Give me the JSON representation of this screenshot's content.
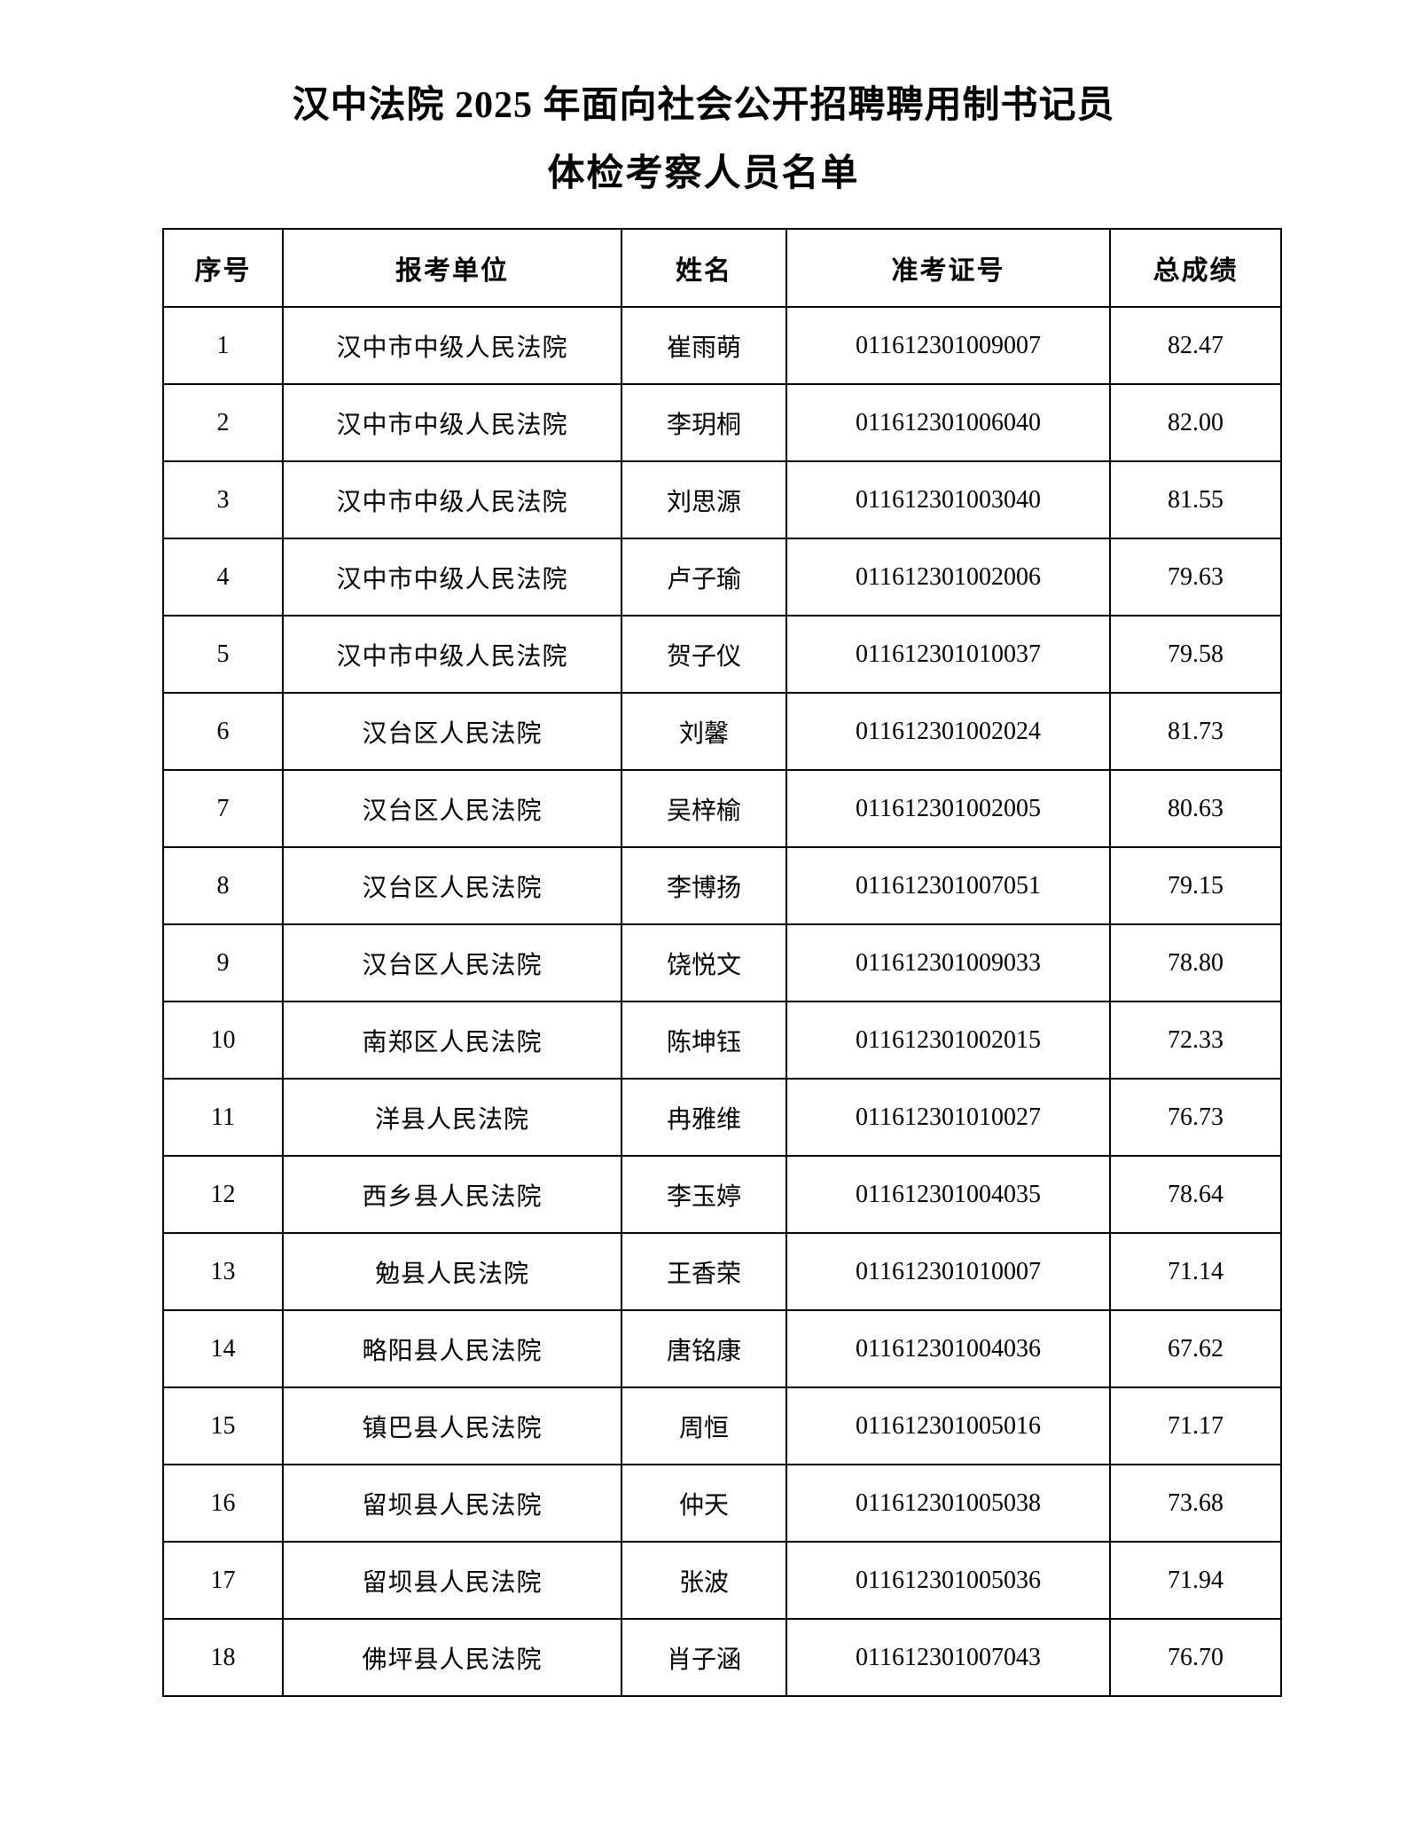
{
  "page": {
    "title_line1": "汉中法院 2025 年面向社会公开招聘聘用制书记员",
    "title_line2": "体检考察人员名单"
  },
  "table": {
    "headers": [
      "序号",
      "报考单位",
      "姓名",
      "准考证号",
      "总成绩"
    ],
    "rows": [
      {
        "no": "1",
        "unit": "汉中市中级人民法院",
        "name": "崔雨萌",
        "ticket": "011612301009007",
        "score": "82.47"
      },
      {
        "no": "2",
        "unit": "汉中市中级人民法院",
        "name": "李玥桐",
        "ticket": "011612301006040",
        "score": "82.00"
      },
      {
        "no": "3",
        "unit": "汉中市中级人民法院",
        "name": "刘思源",
        "ticket": "011612301003040",
        "score": "81.55"
      },
      {
        "no": "4",
        "unit": "汉中市中级人民法院",
        "name": "卢子瑜",
        "ticket": "011612301002006",
        "score": "79.63"
      },
      {
        "no": "5",
        "unit": "汉中市中级人民法院",
        "name": "贺子仪",
        "ticket": "011612301010037",
        "score": "79.58"
      },
      {
        "no": "6",
        "unit": "汉台区人民法院",
        "name": "刘馨",
        "ticket": "011612301002024",
        "score": "81.73"
      },
      {
        "no": "7",
        "unit": "汉台区人民法院",
        "name": "吴梓榆",
        "ticket": "011612301002005",
        "score": "80.63"
      },
      {
        "no": "8",
        "unit": "汉台区人民法院",
        "name": "李博扬",
        "ticket": "011612301007051",
        "score": "79.15"
      },
      {
        "no": "9",
        "unit": "汉台区人民法院",
        "name": "饶悦文",
        "ticket": "011612301009033",
        "score": "78.80"
      },
      {
        "no": "10",
        "unit": "南郑区人民法院",
        "name": "陈坤钰",
        "ticket": "011612301002015",
        "score": "72.33"
      },
      {
        "no": "11",
        "unit": "洋县人民法院",
        "name": "冉雅维",
        "ticket": "011612301010027",
        "score": "76.73"
      },
      {
        "no": "12",
        "unit": "西乡县人民法院",
        "name": "李玉婷",
        "ticket": "011612301004035",
        "score": "78.64"
      },
      {
        "no": "13",
        "unit": "勉县人民法院",
        "name": "王香荣",
        "ticket": "011612301010007",
        "score": "71.14"
      },
      {
        "no": "14",
        "unit": "略阳县人民法院",
        "name": "唐铭康",
        "ticket": "011612301004036",
        "score": "67.62"
      },
      {
        "no": "15",
        "unit": "镇巴县人民法院",
        "name": "周恒",
        "ticket": "011612301005016",
        "score": "71.17"
      },
      {
        "no": "16",
        "unit": "留坝县人民法院",
        "name": "仲天",
        "ticket": "011612301005038",
        "score": "73.68"
      },
      {
        "no": "17",
        "unit": "留坝县人民法院",
        "name": "张波",
        "ticket": "011612301005036",
        "score": "71.94"
      },
      {
        "no": "18",
        "unit": "佛坪县人民法院",
        "name": "肖子涵",
        "ticket": "011612301007043",
        "score": "76.70"
      }
    ]
  }
}
